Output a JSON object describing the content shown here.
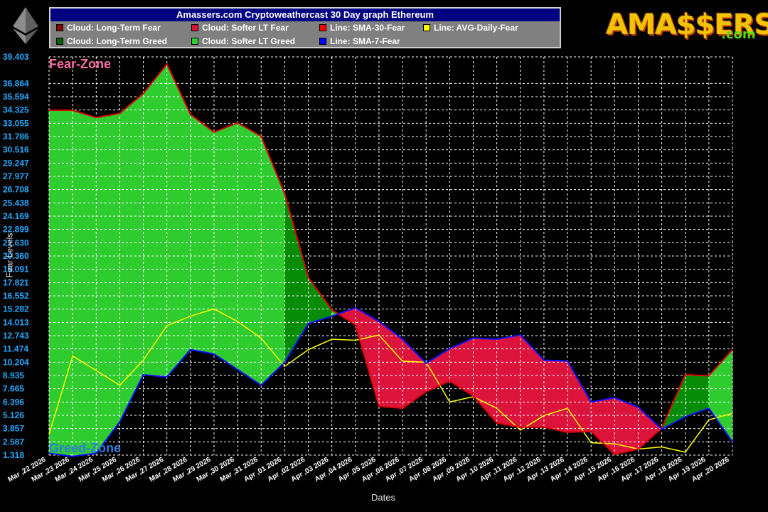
{
  "chart_data": {
    "type": "area",
    "title": "Amassers.com Cryptoweathercast 30 Day graph Ethereum",
    "xlabel": "Dates",
    "ylabel": "Fear Levels",
    "categories": [
      "Mar ,22 2026",
      "Mar ,23 2026",
      "Mar ,24 2026",
      "Mar ,25 2026",
      "Mar ,26 2026",
      "Mar ,27 2026",
      "Mar ,28 2026",
      "Mar ,29 2026",
      "Mar ,30 2026",
      "Mar ,31 2026",
      "Apr ,01 2026",
      "Apr ,02 2026",
      "Apr ,03 2026",
      "Apr ,04 2026",
      "Apr ,05 2026",
      "Apr ,06 2026",
      "Apr ,07 2026",
      "Apr ,08 2026",
      "Apr ,09 2026",
      "Apr ,10 2026",
      "Apr ,11 2026",
      "Apr ,12 2026",
      "Apr ,13 2026",
      "Apr ,14 2026",
      "Apr ,15 2026",
      "Apr ,16 2026",
      "Apr ,17 2026",
      "Apr ,18 2026",
      "Apr ,19 2026",
      "Apr ,20 2026"
    ],
    "yticks": [
      "39.403",
      "36.864",
      "35.594",
      "34.325",
      "33.055",
      "31.786",
      "30.516",
      "29.247",
      "27.977",
      "26.708",
      "25.438",
      "24.169",
      "22.899",
      "21.630",
      "20.360",
      "19.091",
      "17.821",
      "16.552",
      "15.282",
      "14.013",
      "12.743",
      "11.474",
      "10.204",
      "8.935",
      "7.665",
      "6.396",
      "5.126",
      "3.857",
      "2.587",
      "1.318"
    ],
    "ylim": [
      1.318,
      39.403
    ],
    "grid": true,
    "legend_position": "top",
    "legend": [
      {
        "label": "Cloud: Long-Term Fear",
        "color": "#8b0000"
      },
      {
        "label": "Cloud: Softer LT Fear",
        "color": "#dc143c"
      },
      {
        "label": "Line: SMA-30-Fear",
        "color": "#ff0000"
      },
      {
        "label": "Line: AVG-Daily-Fear",
        "color": "#ffff00"
      },
      {
        "label": "Cloud: Long-Term Greed",
        "color": "#006400"
      },
      {
        "label": "Cloud: Softer LT Greed",
        "color": "#32cd32"
      },
      {
        "label": "Line: SMA-7-Fear",
        "color": "#0000ff"
      }
    ],
    "series": [
      {
        "name": "Line: SMA-30-Fear",
        "color": "#ff0000",
        "values": [
          34.3,
          34.3,
          33.6,
          34.0,
          35.9,
          38.7,
          33.9,
          32.2,
          33.1,
          31.8,
          26.3,
          18.3,
          15.2,
          13.8,
          6.0,
          5.8,
          7.4,
          8.4,
          7.0,
          4.4,
          4.0,
          4.0,
          3.5,
          3.6,
          1.4,
          1.9,
          3.9,
          9.0,
          8.9,
          11.4
        ]
      },
      {
        "name": "Line: SMA-7-Fear",
        "color": "#0000ff",
        "values": [
          1.5,
          1.2,
          1.5,
          4.5,
          9.0,
          8.8,
          11.4,
          11.0,
          9.5,
          8.0,
          10.2,
          13.9,
          14.6,
          15.4,
          14.1,
          12.4,
          10.1,
          11.5,
          12.5,
          12.4,
          12.8,
          10.4,
          10.3,
          6.4,
          6.8,
          5.9,
          3.8,
          5.0,
          5.8,
          2.6
        ]
      },
      {
        "name": "Line: AVG-Daily-Fear",
        "color": "#ffff00",
        "values": [
          3.3,
          10.8,
          9.4,
          8.0,
          10.4,
          13.7,
          14.6,
          15.3,
          14.1,
          12.5,
          9.8,
          11.4,
          12.4,
          12.3,
          12.8,
          10.3,
          10.2,
          6.4,
          6.9,
          5.8,
          3.7,
          5.1,
          5.8,
          2.5,
          2.4,
          1.9,
          2.1,
          1.6,
          4.7,
          5.3
        ]
      }
    ]
  },
  "labels": {
    "fear_zone": "Fear-Zone",
    "greed_zone": "Greed-Zone",
    "brand": "AMA$$ERS",
    "brand_com": ".com"
  }
}
